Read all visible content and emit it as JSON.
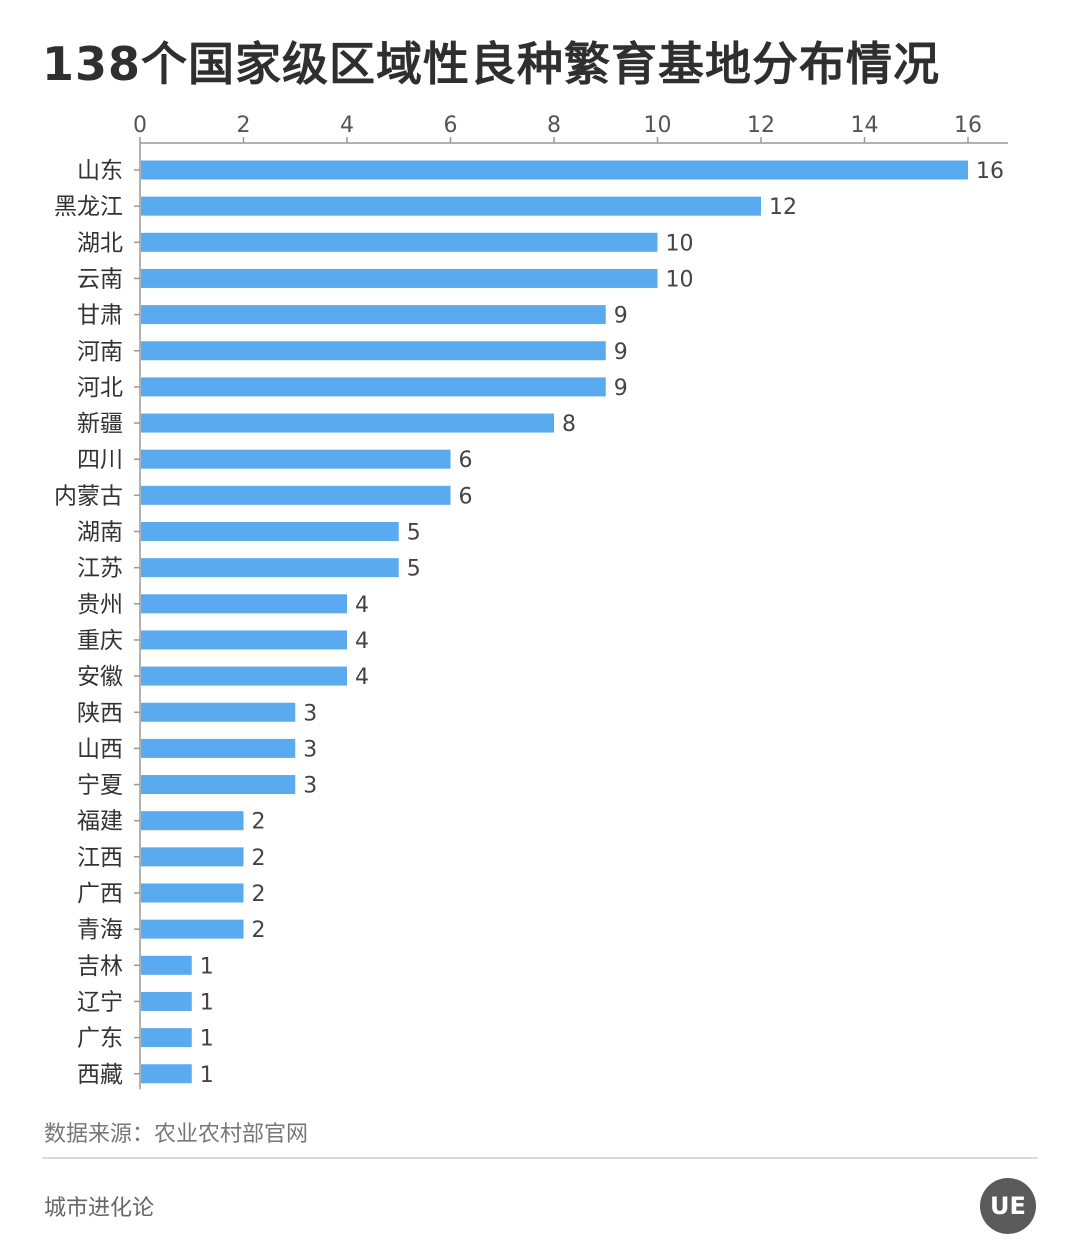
{
  "title": "138个国家级区域性良种繁育基地分布情况",
  "source": "数据来源：农业农村部官网",
  "brand": "城市进化论",
  "logo_text": "UE",
  "colors": {
    "bar": "#5aaaf0",
    "axis": "#999999",
    "text": "#333333"
  },
  "chart_data": {
    "type": "bar",
    "orientation": "horizontal",
    "title": "138个国家级区域性良种繁育基地分布情况",
    "xlabel": "",
    "ylabel": "",
    "xlim": [
      0,
      16
    ],
    "x_ticks": [
      0,
      2,
      4,
      6,
      8,
      10,
      12,
      14,
      16
    ],
    "x_axis_position": "top",
    "grid": false,
    "categories": [
      "山东",
      "黑龙江",
      "湖北",
      "云南",
      "甘肃",
      "河南",
      "河北",
      "新疆",
      "四川",
      "内蒙古",
      "湖南",
      "江苏",
      "贵州",
      "重庆",
      "安徽",
      "陕西",
      "山西",
      "宁夏",
      "福建",
      "江西",
      "广西",
      "青海",
      "吉林",
      "辽宁",
      "广东",
      "西藏"
    ],
    "values": [
      16,
      12,
      10,
      10,
      9,
      9,
      9,
      8,
      6,
      6,
      5,
      5,
      4,
      4,
      4,
      3,
      3,
      3,
      2,
      2,
      2,
      2,
      1,
      1,
      1,
      1
    ]
  }
}
